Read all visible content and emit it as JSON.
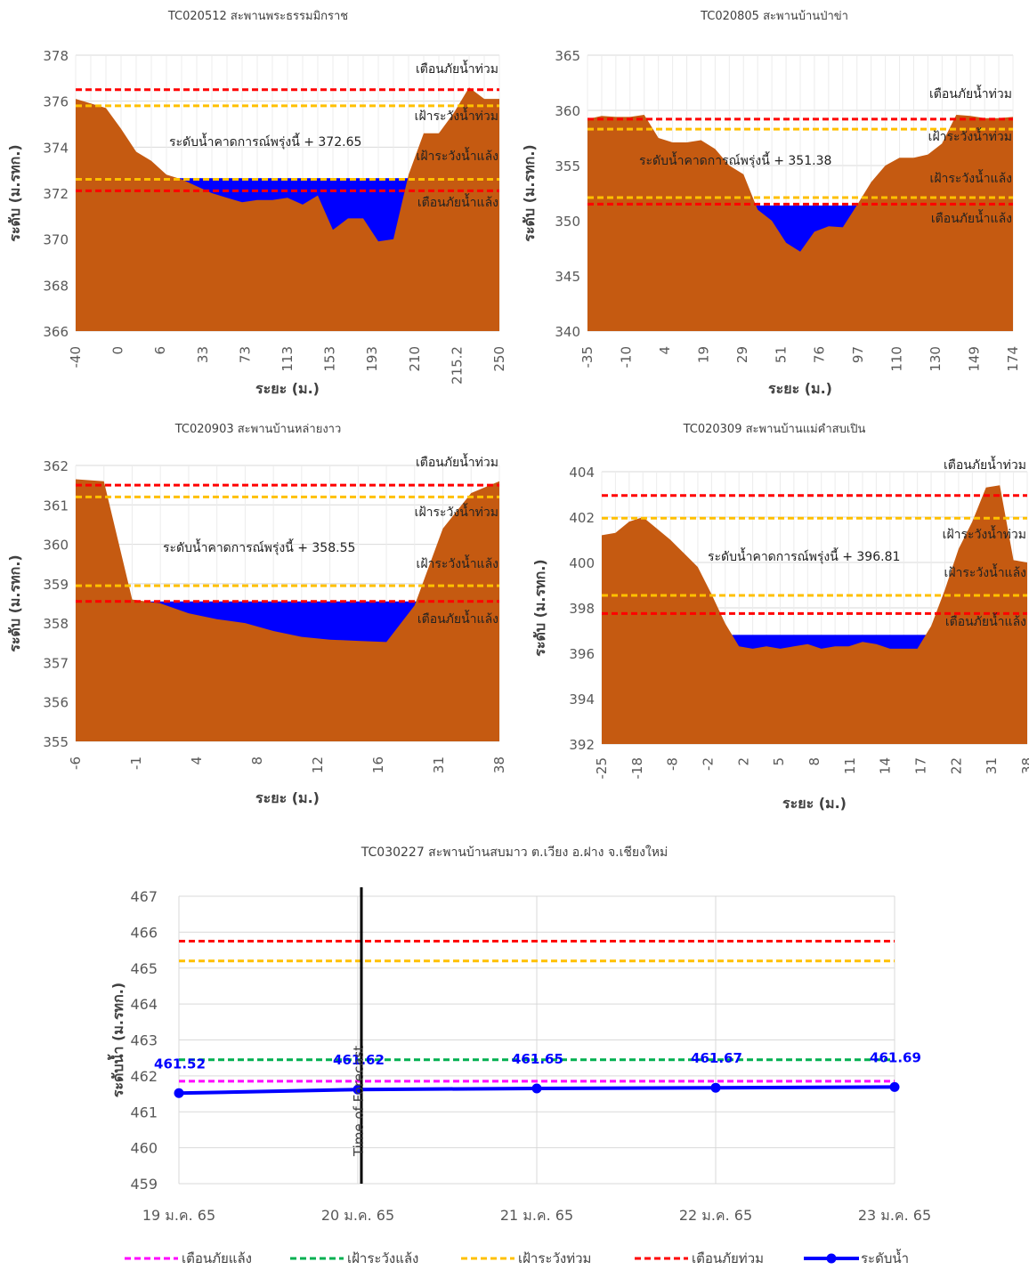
{
  "labels": {
    "distance_axis": "ระยะ (ม.)",
    "level_axis": "ระดับ (ม.รทก.)",
    "flood_warn": "เตือนภัยน้ำท่วม",
    "flood_watch": "เฝ้าระวังน้ำท่วม",
    "drought_watch": "เฝ้าระวังน้ำแล้ง",
    "drought_warn": "เตือนภัยน้ำแล้ง",
    "forecast_prefix": "ระดับน้ำคาดการณ์พรุ่งนี้ +"
  },
  "colors": {
    "ground": "#c55a11",
    "water": "#0000ff",
    "flood_warn": "#ff0000",
    "flood_watch": "#ffc000",
    "drought_watch": "#00b050",
    "drought_warn": "#ff00ff",
    "level_line": "#0000ff",
    "grid": "#d9d9d9"
  },
  "chart_data": [
    {
      "type": "area",
      "title": "TC020512 สะพานพระธรรมมิกราช",
      "xlabel": "ระยะ (ม.)",
      "ylabel": "ระดับ (ม.รทก.)",
      "ylim": [
        366,
        378
      ],
      "yticks": [
        366,
        368,
        370,
        372,
        374,
        376,
        378
      ],
      "xtick_labels": [
        "-40",
        "0",
        "6",
        "33",
        "73",
        "113",
        "153",
        "193",
        "210",
        "215.2",
        "250"
      ],
      "profile": [
        376.1,
        375.9,
        375.7,
        374.8,
        373.8,
        373.4,
        372.8,
        372.6,
        372.3,
        372.0,
        371.8,
        371.6,
        371.7,
        371.7,
        371.8,
        371.5,
        371.9,
        370.4,
        370.9,
        370.9,
        369.9,
        370.0,
        372.8,
        374.6,
        374.6,
        375.5,
        376.6,
        376.1,
        376.1
      ],
      "forecast_level": 372.65,
      "flood_warn": 376.5,
      "flood_watch": 375.8,
      "drought_watch": 372.6,
      "drought_warn": 372.1
    },
    {
      "type": "area",
      "title": "TC020805 สะพานบ้านป่าข่า",
      "xlabel": "ระยะ (ม.)",
      "ylabel": "ระดับ (ม.รทก.)",
      "ylim": [
        340,
        365
      ],
      "yticks": [
        340,
        345,
        350,
        355,
        360,
        365
      ],
      "xtick_labels": [
        "-35",
        "-10",
        "4",
        "19",
        "29",
        "51",
        "76",
        "97",
        "110",
        "130",
        "149",
        "174"
      ],
      "profile": [
        359.2,
        359.5,
        359.4,
        359.4,
        359.6,
        357.5,
        357.1,
        357.1,
        357.3,
        356.5,
        355.0,
        354.2,
        351.0,
        350.0,
        348.0,
        347.2,
        349.0,
        349.5,
        349.4,
        351.4,
        353.5,
        355.0,
        355.7,
        355.7,
        356.0,
        357.0,
        359.6,
        359.5,
        359.3,
        359.3,
        359.4
      ],
      "forecast_level": 351.38,
      "flood_warn": 359.2,
      "flood_watch": 358.3,
      "drought_watch": 352.1,
      "drought_warn": 351.5
    },
    {
      "type": "area",
      "title": "TC020903 สะพานบ้านหล่ายงาว",
      "xlabel": "ระยะ (ม.)",
      "ylabel": "ระดับ (ม.รทก.)",
      "ylim": [
        355,
        362
      ],
      "yticks": [
        355,
        356,
        357,
        358,
        359,
        360,
        361,
        362
      ],
      "xtick_labels": [
        "-6",
        "-1",
        "4",
        "8",
        "12",
        "16",
        "31",
        "38"
      ],
      "profile": [
        361.65,
        361.6,
        358.6,
        358.5,
        358.25,
        358.1,
        358.0,
        357.8,
        357.65,
        357.58,
        357.55,
        357.52,
        358.45,
        360.4,
        361.3,
        361.6
      ],
      "forecast_level": 358.55,
      "flood_warn": 361.5,
      "flood_watch": 361.2,
      "drought_watch": 358.95,
      "drought_warn": 358.55
    },
    {
      "type": "area",
      "title": "TC020309 สะพานบ้านแม่คำสบเปิน",
      "xlabel": "ระยะ (ม.)",
      "ylabel": "ระดับ (ม.รทก.)",
      "ylim": [
        392,
        404
      ],
      "yticks": [
        392,
        394,
        396,
        398,
        400,
        402,
        404
      ],
      "xtick_labels": [
        "-25",
        "-18",
        "-8",
        "-2",
        "2",
        "5",
        "8",
        "11",
        "14",
        "17",
        "22",
        "31",
        "38"
      ],
      "profile": [
        401.2,
        401.3,
        401.8,
        402.0,
        401.5,
        401.0,
        400.4,
        399.8,
        398.6,
        397.3,
        396.3,
        396.2,
        396.3,
        396.2,
        396.3,
        396.4,
        396.2,
        396.3,
        396.3,
        396.5,
        396.4,
        396.2,
        396.2,
        396.2,
        397.2,
        398.8,
        400.6,
        401.8,
        403.3,
        403.4,
        400.1,
        400.0
      ],
      "forecast_level": 396.81,
      "flood_warn": 402.95,
      "flood_watch": 401.95,
      "drought_watch": 398.55,
      "drought_warn": 397.75
    },
    {
      "type": "line",
      "title": "TC030227 สะพานบ้านสบมาว ต.เวียง อ.ฝาง จ.เชียงใหม่",
      "xlabel": "",
      "ylabel": "ระดับน้ำ (ม.รทก.)",
      "ylim": [
        459,
        467
      ],
      "yticks": [
        459,
        460,
        461,
        462,
        463,
        464,
        465,
        466,
        467
      ],
      "categories": [
        "19 ม.ค. 65",
        "20 ม.ค. 65",
        "21 ม.ค. 65",
        "22 ม.ค. 65",
        "23 ม.ค. 65"
      ],
      "forecast_marker_label": "Time of Forecast",
      "series": [
        {
          "name": "เตือนภัยแล้ง",
          "style": "dashed",
          "values": [
            461.85,
            461.85,
            461.85,
            461.85,
            461.85
          ]
        },
        {
          "name": "เฝ้าระวังแล้ง",
          "style": "dashed",
          "values": [
            462.45,
            462.45,
            462.45,
            462.45,
            462.45
          ]
        },
        {
          "name": "เฝ้าระวังท่วม",
          "style": "dashed",
          "values": [
            465.2,
            465.2,
            465.2,
            465.2,
            465.2
          ]
        },
        {
          "name": "เตือนภัยท่วม",
          "style": "dashed",
          "values": [
            465.75,
            465.75,
            465.75,
            465.75,
            465.75
          ]
        },
        {
          "name": "ระดับน้ำ",
          "style": "solid-marker",
          "values": [
            461.52,
            461.62,
            461.65,
            461.67,
            461.69
          ]
        }
      ]
    }
  ]
}
